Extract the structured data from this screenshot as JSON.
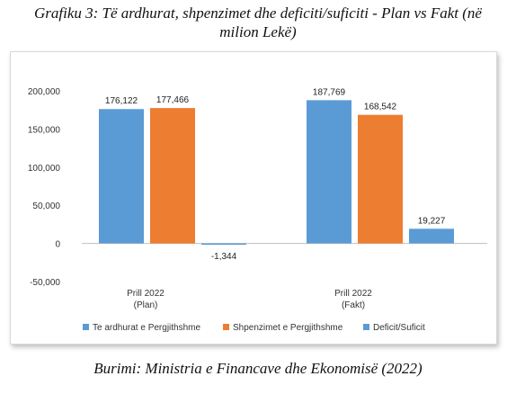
{
  "caption": {
    "title_line1": "Grafiku 3: Të ardhurat, shpenzimet dhe deficiti/suficiti - Plan vs Fakt  (në",
    "title_line2": "milion Lekë)",
    "source": "Burimi: Ministria e Financave dhe Ekonomisë (2022)"
  },
  "chart_data": {
    "type": "bar",
    "categories": [
      "Prill 2022\n(Plan)",
      "Prill 2022\n(Fakt)"
    ],
    "series": [
      {
        "name": "Te ardhurat e Pergjithshme",
        "values": [
          176122,
          187769
        ],
        "labels": [
          "176,122",
          "187,769"
        ],
        "color": "#5b9bd5"
      },
      {
        "name": "Shpenzimet e Pergjithshme",
        "values": [
          177466,
          168542
        ],
        "labels": [
          "177,466",
          "168,542"
        ],
        "color": "#ed7d31"
      },
      {
        "name": "Deficit/Suficit",
        "values": [
          -1344,
          19227
        ],
        "labels": [
          "-1,344",
          "19,227"
        ],
        "color": "#5b9bd5"
      }
    ],
    "ylim": [
      -50000,
      200000
    ],
    "yticks": [
      200000,
      150000,
      100000,
      50000,
      0,
      -50000
    ],
    "ytick_labels": [
      "200,000",
      "150,000",
      "100,000",
      "50,000",
      "0",
      "-50,000"
    ],
    "grid": false,
    "legend_position": "bottom"
  }
}
